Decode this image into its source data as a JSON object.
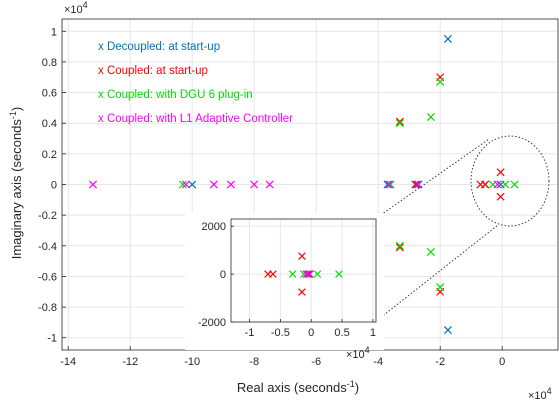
{
  "chart_data": {
    "type": "scatter",
    "xlabel": "Real axis (seconds",
    "xlabel_sup": "-1",
    "xlabel_tail": ")",
    "ylabel": "Imaginary axis (seconds",
    "ylabel_sup": "-1",
    "ylabel_tail": ")",
    "x_multiplier": "×10",
    "x_multiplier_exp": "4",
    "y_multiplier": "×10",
    "y_multiplier_exp": "4",
    "xlim": [
      -14.2,
      1.8
    ],
    "ylim": [
      -1.08,
      1.08
    ],
    "x_ticks": [
      -14,
      -12,
      -10,
      -8,
      -6,
      -4,
      -2,
      0
    ],
    "x_tick_labels": [
      "-14",
      "-12",
      "-10",
      "-8",
      "-6",
      "-4",
      "-2",
      "0"
    ],
    "y_ticks": [
      1,
      0.8,
      0.6,
      0.4,
      0.2,
      0,
      -0.2,
      -0.4,
      -0.6,
      -0.8,
      -1
    ],
    "y_tick_labels": [
      "1",
      "0.8",
      "0.6",
      "0.4",
      "0.2",
      "0",
      "-0.2",
      "-0.4",
      "-0.6",
      "-0.8",
      "-1"
    ],
    "grid": true,
    "legend_position": "top-left",
    "series": [
      {
        "name": "Decoupled: at start-up",
        "color": "#0072BD",
        "points": [
          [
            -1.75,
            0.95
          ],
          [
            -1.75,
            -0.95
          ],
          [
            -10.0,
            0
          ],
          [
            -3.7,
            0
          ],
          [
            -2.75,
            0
          ],
          [
            -0.55,
            0
          ],
          [
            -0.05,
            0
          ]
        ]
      },
      {
        "name": "Coupled: at start-up",
        "color": "#FF0000",
        "points": [
          [
            -2.0,
            0.7
          ],
          [
            -2.0,
            -0.7
          ],
          [
            -3.3,
            0.41
          ],
          [
            -3.3,
            -0.41
          ],
          [
            -2.8,
            0
          ],
          [
            -0.7,
            0
          ],
          [
            -0.55,
            0
          ],
          [
            -0.05,
            0.08
          ],
          [
            -0.05,
            -0.08
          ]
        ]
      },
      {
        "name": "Coupled: with DGU 6 plug-in",
        "color": "#00E000",
        "points": [
          [
            -2.0,
            0.67
          ],
          [
            -2.0,
            -0.67
          ],
          [
            -3.3,
            0.4
          ],
          [
            -3.3,
            -0.4
          ],
          [
            -2.3,
            0.44
          ],
          [
            -2.3,
            -0.44
          ],
          [
            -10.3,
            0
          ],
          [
            -3.6,
            0
          ],
          [
            -2.7,
            0
          ],
          [
            -0.3,
            0
          ],
          [
            0.1,
            0
          ],
          [
            0.4,
            0
          ]
        ]
      },
      {
        "name": "Coupled: with L1 Adaptive Controller",
        "color": "#FF00FF",
        "points": [
          [
            -13.2,
            0
          ],
          [
            -10.2,
            0
          ],
          [
            -9.3,
            0
          ],
          [
            -8.75,
            0
          ],
          [
            -8.0,
            0
          ],
          [
            -7.5,
            0
          ],
          [
            -3.65,
            0
          ],
          [
            -2.7,
            0
          ],
          [
            -0.15,
            0
          ]
        ]
      }
    ],
    "inset": {
      "xlim": [
        -1.3,
        1.05
      ],
      "ylim": [
        -2000,
        2300
      ],
      "x_ticks": [
        -1,
        -0.5,
        0,
        0.5,
        1
      ],
      "x_tick_labels": [
        "-1",
        "-0.5",
        "0",
        "0.5",
        "1"
      ],
      "y_ticks": [
        2000,
        0,
        -2000
      ],
      "y_tick_labels": [
        "2000",
        "0",
        "-2000"
      ],
      "x_multiplier": "×10",
      "x_multiplier_exp": "4",
      "series": [
        {
          "color": "#0072BD",
          "points": [
            [
              -0.05,
              0
            ],
            [
              -0.02,
              0
            ]
          ]
        },
        {
          "color": "#FF0000",
          "points": [
            [
              -0.7,
              0
            ],
            [
              -0.62,
              0
            ],
            [
              -0.15,
              750
            ],
            [
              -0.15,
              -750
            ],
            [
              -0.05,
              0
            ]
          ]
        },
        {
          "color": "#00E000",
          "points": [
            [
              -0.3,
              0
            ],
            [
              -0.12,
              0
            ],
            [
              0.1,
              0
            ],
            [
              0.45,
              0
            ]
          ]
        },
        {
          "color": "#FF00FF",
          "points": [
            [
              -0.08,
              0
            ],
            [
              -0.03,
              0
            ]
          ]
        }
      ]
    }
  }
}
